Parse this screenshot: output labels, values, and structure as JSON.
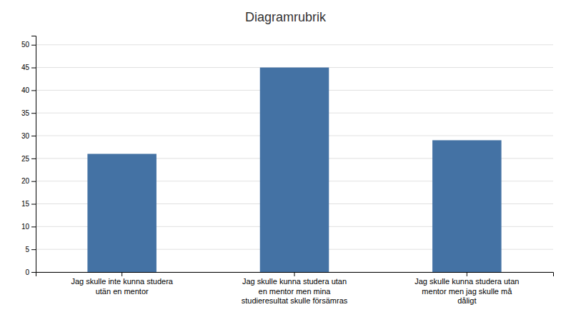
{
  "chart_data": {
    "type": "bar",
    "title": "Diagramrubrik",
    "categories": [
      "Jag skulle inte kunna studera\nutän en mentor",
      "Jag skulle kunna studera utan\nen mentor men mina\nstudieresultat skulle försämras",
      "Jag skulle kunna studera utan\nmentor men jag skulle må\ndåligt"
    ],
    "values": [
      26,
      45,
      29
    ],
    "color": "#4472a4",
    "ylim": [
      0,
      52
    ],
    "yticks": [
      0,
      5,
      10,
      15,
      20,
      25,
      30,
      35,
      40,
      45,
      50
    ],
    "grid": true
  }
}
